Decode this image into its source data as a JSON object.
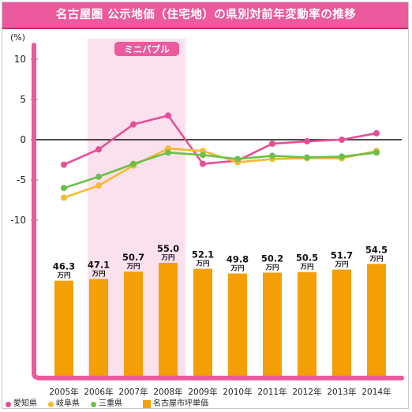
{
  "title": "名古屋圏 公示地価（住宅地）の県別対前年変動率の推移",
  "chart_data": {
    "type": "line",
    "categories": [
      "2005年",
      "2006年",
      "2007年",
      "2008年",
      "2009年",
      "2010年",
      "2011年",
      "2012年",
      "2013年",
      "2014年"
    ],
    "ylabel": "(%)",
    "ylim": [
      -10,
      10
    ],
    "yticks": [
      "10",
      "5",
      "0",
      "-5",
      "-10"
    ],
    "highlight": {
      "label": "ミニバブル",
      "from": "2006年",
      "to": "2008年",
      "color": "#fbe1ee"
    },
    "series": [
      {
        "name": "愛知県",
        "color": "#e64e96",
        "values": [
          -3.1,
          -1.2,
          1.9,
          3.0,
          -3.0,
          -2.6,
          -0.5,
          -0.2,
          0.0,
          0.8
        ]
      },
      {
        "name": "岐阜県",
        "color": "#f6b92e",
        "values": [
          -7.2,
          -5.7,
          -3.2,
          -1.1,
          -1.4,
          -2.8,
          -2.4,
          -2.3,
          -2.3,
          -1.4
        ]
      },
      {
        "name": "三重県",
        "color": "#6cc04a",
        "values": [
          -6.0,
          -4.6,
          -3.0,
          -1.6,
          -1.9,
          -2.4,
          -2.0,
          -2.2,
          -2.1,
          -1.6
        ]
      }
    ],
    "bars": {
      "name": "名古屋市坪単価",
      "color": "#f49f05",
      "unit": "万円",
      "values": [
        46.3,
        47.1,
        50.7,
        55.0,
        52.1,
        49.8,
        50.2,
        50.5,
        51.7,
        54.5
      ],
      "labels": [
        "46.3",
        "47.1",
        "50.7",
        "55.0",
        "52.1",
        "49.8",
        "50.2",
        "50.5",
        "51.7",
        "54.5"
      ]
    }
  }
}
